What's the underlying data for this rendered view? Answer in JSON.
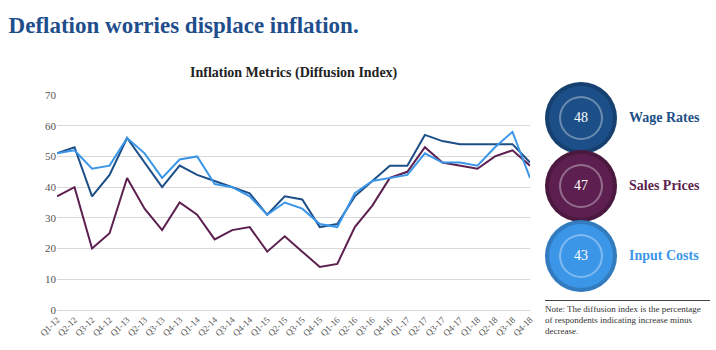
{
  "chart_data": {
    "type": "line",
    "title": "Deflation worries displace inflation.",
    "subtitle": "Inflation Metrics (Diffusion Index)",
    "note": "Note: The diffusion index is the percentage of respondents indicating increase minus decrease.",
    "categories": [
      "Q1-12",
      "Q2-12",
      "Q3-12",
      "Q4-12",
      "Q1-13",
      "Q2-13",
      "Q3-13",
      "Q4-13",
      "Q1-14",
      "Q2-14",
      "Q3-14",
      "Q4-14",
      "Q1-15",
      "Q2-15",
      "Q3-15",
      "Q4-15",
      "Q1-16",
      "Q2-16",
      "Q3-16",
      "Q4-16",
      "Q1-17",
      "Q2-17",
      "Q3-17",
      "Q4-17",
      "Q1-18",
      "Q2-18",
      "Q3-18",
      "Q4-18"
    ],
    "series": [
      {
        "name": "Wage Rates",
        "color": "#1c4f88",
        "values": [
          51,
          53,
          37,
          44,
          56,
          48,
          40,
          47,
          44,
          42,
          40,
          38,
          31,
          37,
          36,
          27,
          28,
          37,
          42,
          47,
          47,
          57,
          55,
          54,
          54,
          54,
          54,
          48
        ]
      },
      {
        "name": "Sales Prices",
        "color": "#5c1f4f",
        "values": [
          37,
          40,
          20,
          25,
          43,
          33,
          26,
          35,
          31,
          23,
          26,
          27,
          19,
          24,
          19,
          14,
          15,
          27,
          34,
          43,
          45,
          53,
          48,
          47,
          46,
          50,
          52,
          47
        ]
      },
      {
        "name": "Input Costs",
        "color": "#3c96e8",
        "values": [
          51,
          52,
          46,
          47,
          56,
          51,
          43,
          49,
          50,
          41,
          40,
          37,
          31,
          35,
          33,
          28,
          27,
          38,
          42,
          43,
          44,
          51,
          48,
          48,
          47,
          53,
          58,
          43
        ]
      }
    ],
    "ylim": [
      0,
      70
    ],
    "yticks": [
      0,
      10,
      20,
      30,
      40,
      50,
      60,
      70
    ],
    "grid": true,
    "legend": "right"
  }
}
